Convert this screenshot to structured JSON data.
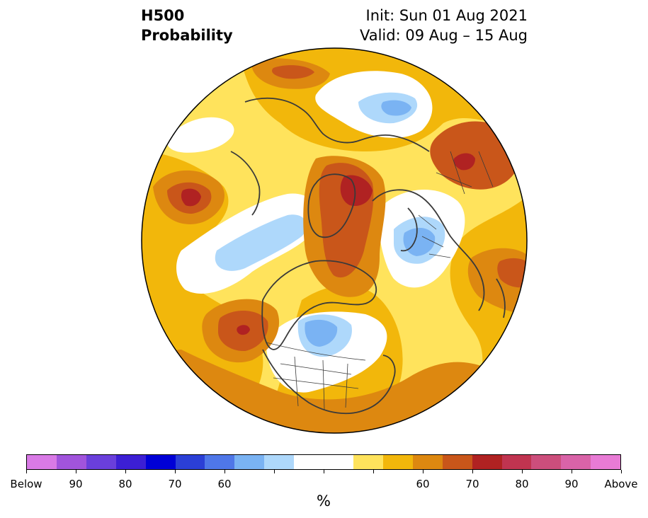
{
  "title": {
    "left_line1": "H500",
    "left_line2": "Probability",
    "right_line1": "Init: Sun 01 Aug 2021",
    "right_line2": "Valid: 09 Aug – 15 Aug"
  },
  "colorbar": {
    "unit": "%",
    "colors": [
      "#d97ae6",
      "#a154dc",
      "#6a3fdb",
      "#3c1fd4",
      "#0000d6",
      "#2b3fd6",
      "#4f77e8",
      "#7ab3f3",
      "#aed8fb",
      "#ffffff",
      "#ffffff",
      "#ffe35c",
      "#f2b70b",
      "#dd8810",
      "#c9561a",
      "#b02222",
      "#c03450",
      "#cc4e7c",
      "#d963a8",
      "#e87bd5"
    ],
    "ticks": [
      "Below",
      "90",
      "80",
      "70",
      "60",
      "",
      "",
      "",
      "60",
      "70",
      "80",
      "90",
      "Above"
    ]
  },
  "map": {
    "projection": "north-polar-orthographic",
    "palette": {
      "bg": "#ffe35c",
      "orange": "#f2b70b",
      "darkorange": "#dd8810",
      "brown": "#c9561a",
      "red": "#b02222",
      "white": "#ffffff",
      "lightblue": "#aed8fb",
      "blue": "#7ab3f3",
      "darkblue": "#4f77e8",
      "coast": "#3a3a3a"
    }
  }
}
